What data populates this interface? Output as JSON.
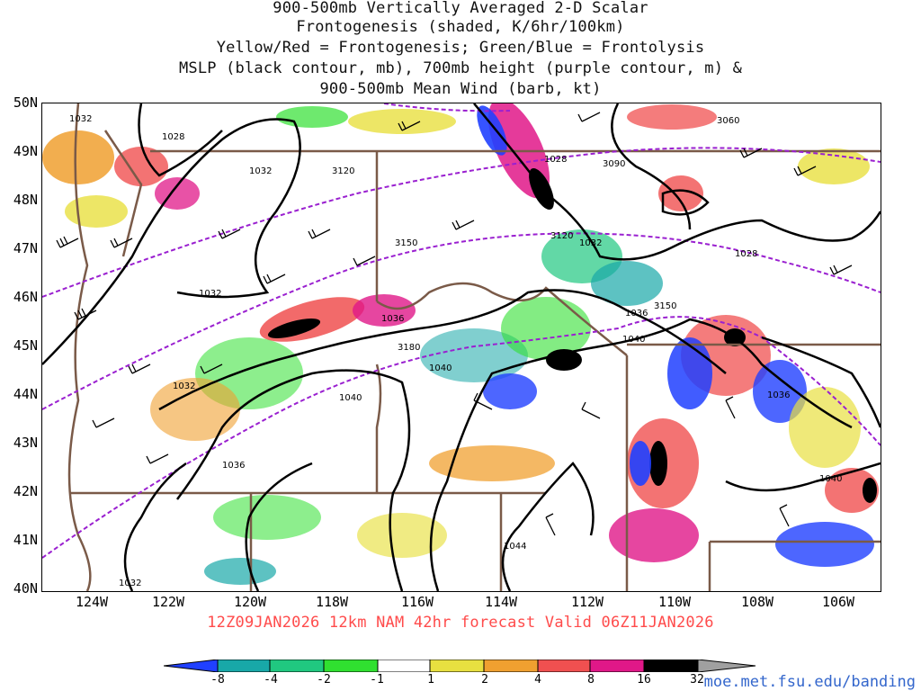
{
  "title": {
    "line1": "900-500mb Vertically Averaged 2-D Scalar",
    "line2": "Frontogenesis (shaded, K/6hr/100km)",
    "line3": "Yellow/Red = Frontogenesis;  Green/Blue = Frontolysis",
    "line4": "MSLP (black contour, mb), 700mb height (purple contour, m) &",
    "line5": "900-500mb Mean Wind (barb, kt)"
  },
  "footer": "12Z09JAN2026 12km NAM 42hr forecast Valid 06Z11JAN2026",
  "credit": "moe.met.fsu.edu/banding",
  "axes": {
    "lat_labels": [
      "50N",
      "49N",
      "48N",
      "47N",
      "46N",
      "45N",
      "44N",
      "43N",
      "42N",
      "41N",
      "40N"
    ],
    "lon_labels": [
      "124W",
      "122W",
      "120W",
      "118W",
      "116W",
      "114W",
      "112W",
      "110W",
      "108W",
      "106W"
    ]
  },
  "colorbar": {
    "labels": [
      "-8",
      "-4",
      "-2",
      "-1",
      "1",
      "2",
      "4",
      "8",
      "16",
      "32"
    ],
    "colors": [
      "#2040ff",
      "#18a8a8",
      "#20c880",
      "#30e030",
      "#ffffff",
      "#e8e040",
      "#f0a030",
      "#f05050",
      "#e01888",
      "#000000",
      "#a0a0a0"
    ]
  },
  "mslp_labels": [
    "1028",
    "1032",
    "1032",
    "1032",
    "1036",
    "1032",
    "1028",
    "1032",
    "1036",
    "1040",
    "1040",
    "1040",
    "1036",
    "1040",
    "1044",
    "1032",
    "1028",
    "1036"
  ],
  "height_labels": [
    "3060",
    "3090",
    "3120",
    "3120",
    "3150",
    "3150",
    "3180"
  ],
  "colors": {
    "mslp": "#000000",
    "height": "#9a20d0",
    "borders": "#7a5a48",
    "footer": "#ff4b4b",
    "credit": "#3366cc"
  }
}
